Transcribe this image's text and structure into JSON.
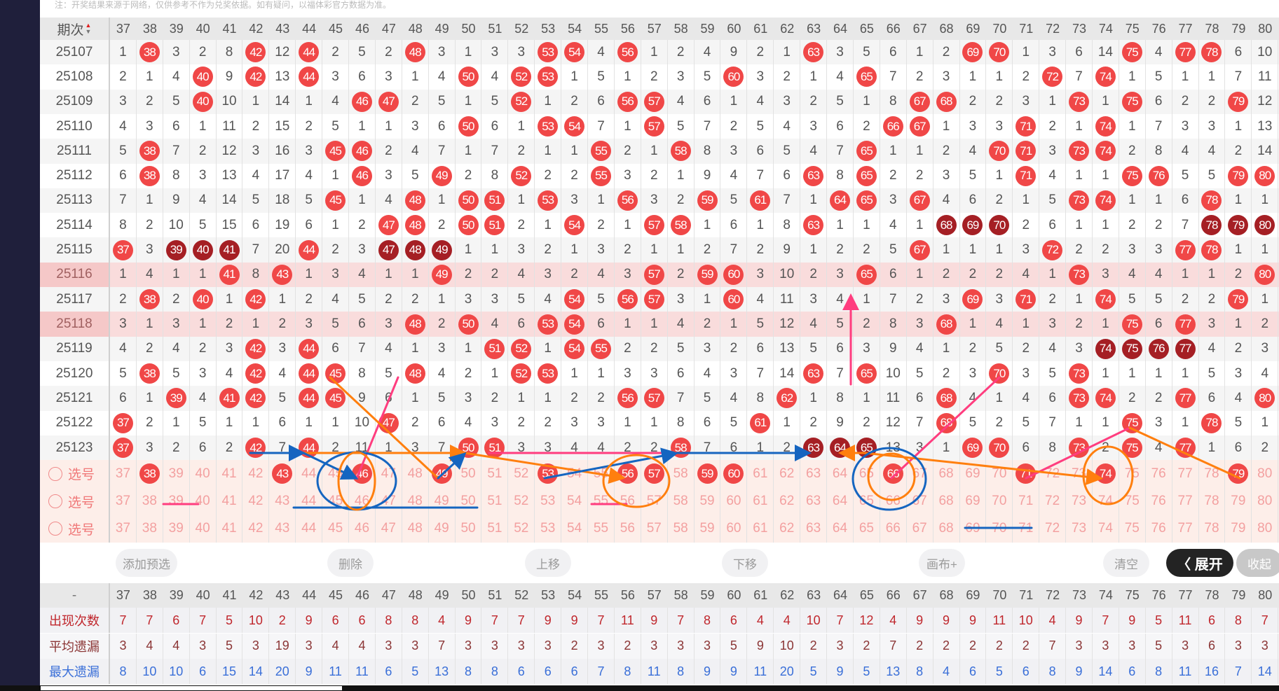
{
  "note": "注：开奖结果来源于网络，仅供参考不作为兑奖依据。如有疑问，以福体彩官方数据为准。",
  "header": {
    "period_label": "期次",
    "columns": [
      37,
      38,
      39,
      40,
      41,
      42,
      43,
      44,
      45,
      46,
      47,
      48,
      49,
      50,
      51,
      52,
      53,
      54,
      55,
      56,
      57,
      58,
      59,
      60,
      61,
      62,
      63,
      64,
      65,
      66,
      67,
      68,
      69,
      70,
      71,
      72,
      73,
      74,
      75,
      76,
      77,
      78,
      79,
      80
    ]
  },
  "rows": [
    {
      "period": "25107",
      "cells": [
        1,
        38,
        3,
        2,
        8,
        42,
        12,
        44,
        2,
        5,
        2,
        48,
        3,
        1,
        3,
        3,
        53,
        54,
        4,
        56,
        1,
        2,
        4,
        9,
        2,
        1,
        63,
        3,
        5,
        6,
        1,
        2,
        69,
        70,
        1,
        3,
        6,
        14,
        75,
        4,
        77,
        78,
        6,
        10
      ],
      "dark": []
    },
    {
      "period": "25108",
      "cells": [
        2,
        1,
        4,
        40,
        9,
        42,
        13,
        44,
        3,
        6,
        3,
        1,
        4,
        50,
        4,
        52,
        53,
        1,
        5,
        1,
        2,
        3,
        5,
        60,
        3,
        2,
        1,
        4,
        65,
        7,
        2,
        3,
        1,
        1,
        2,
        72,
        7,
        74,
        1,
        5,
        1,
        1,
        7,
        11
      ],
      "dark": []
    },
    {
      "period": "25109",
      "cells": [
        3,
        2,
        5,
        40,
        10,
        1,
        14,
        1,
        4,
        46,
        47,
        2,
        5,
        1,
        5,
        52,
        1,
        2,
        6,
        56,
        57,
        4,
        6,
        1,
        4,
        3,
        2,
        5,
        1,
        8,
        67,
        68,
        2,
        2,
        3,
        1,
        73,
        1,
        75,
        6,
        2,
        2,
        79,
        12
      ],
      "dark": []
    },
    {
      "period": "25110",
      "cells": [
        4,
        3,
        6,
        1,
        11,
        2,
        15,
        2,
        5,
        1,
        1,
        3,
        6,
        50,
        6,
        1,
        53,
        54,
        7,
        1,
        57,
        5,
        7,
        2,
        5,
        4,
        3,
        6,
        2,
        66,
        67,
        1,
        3,
        3,
        71,
        2,
        1,
        74,
        1,
        7,
        3,
        3,
        1,
        13
      ],
      "dark": []
    },
    {
      "period": "25111",
      "cells": [
        5,
        38,
        7,
        2,
        12,
        3,
        16,
        3,
        45,
        46,
        2,
        4,
        7,
        1,
        7,
        2,
        1,
        1,
        55,
        2,
        1,
        58,
        8,
        3,
        6,
        5,
        4,
        7,
        65,
        1,
        1,
        2,
        4,
        70,
        71,
        3,
        73,
        74,
        2,
        8,
        4,
        4,
        2,
        14
      ],
      "dark": []
    },
    {
      "period": "25112",
      "cells": [
        6,
        38,
        8,
        3,
        13,
        4,
        17,
        4,
        1,
        46,
        3,
        5,
        49,
        2,
        8,
        52,
        2,
        2,
        55,
        3,
        2,
        1,
        9,
        4,
        7,
        6,
        63,
        8,
        65,
        2,
        2,
        3,
        5,
        1,
        71,
        4,
        1,
        1,
        75,
        76,
        5,
        5,
        79,
        80
      ],
      "dark": []
    },
    {
      "period": "25113",
      "cells": [
        7,
        1,
        9,
        4,
        14,
        5,
        18,
        5,
        45,
        1,
        4,
        48,
        1,
        50,
        51,
        1,
        53,
        3,
        1,
        56,
        3,
        2,
        59,
        5,
        61,
        7,
        1,
        64,
        65,
        3,
        67,
        4,
        6,
        2,
        1,
        5,
        73,
        74,
        1,
        1,
        6,
        78,
        1,
        1
      ],
      "dark": []
    },
    {
      "period": "25114",
      "cells": [
        8,
        2,
        10,
        5,
        15,
        6,
        19,
        6,
        1,
        2,
        47,
        48,
        2,
        50,
        51,
        2,
        1,
        54,
        2,
        1,
        57,
        58,
        1,
        6,
        1,
        8,
        63,
        1,
        1,
        4,
        1,
        68,
        69,
        70,
        2,
        6,
        1,
        1,
        2,
        2,
        7,
        78,
        79,
        80
      ],
      "dark": [
        68,
        69,
        70,
        78,
        79,
        80
      ]
    },
    {
      "period": "25115",
      "cells": [
        37,
        3,
        39,
        40,
        41,
        7,
        20,
        44,
        2,
        3,
        47,
        48,
        49,
        1,
        1,
        3,
        2,
        1,
        3,
        2,
        1,
        1,
        2,
        7,
        2,
        9,
        1,
        2,
        2,
        5,
        67,
        1,
        1,
        1,
        3,
        72,
        2,
        2,
        3,
        3,
        77,
        78,
        1,
        1
      ],
      "dark": [
        39,
        40,
        41,
        47,
        48,
        49
      ]
    },
    {
      "period": "25116",
      "cells": [
        1,
        4,
        1,
        1,
        41,
        8,
        43,
        1,
        3,
        4,
        1,
        1,
        49,
        2,
        2,
        4,
        3,
        2,
        4,
        3,
        57,
        2,
        59,
        60,
        3,
        10,
        2,
        3,
        65,
        6,
        1,
        2,
        2,
        2,
        4,
        1,
        73,
        3,
        4,
        4,
        1,
        1,
        2,
        80
      ],
      "dark": [],
      "highlight": true
    },
    {
      "period": "25117",
      "cells": [
        2,
        38,
        2,
        40,
        1,
        42,
        1,
        2,
        4,
        5,
        2,
        2,
        1,
        3,
        3,
        5,
        4,
        54,
        5,
        56,
        57,
        3,
        1,
        60,
        4,
        11,
        3,
        4,
        1,
        7,
        2,
        3,
        69,
        3,
        71,
        2,
        1,
        74,
        5,
        5,
        2,
        2,
        79,
        1
      ],
      "dark": []
    },
    {
      "period": "25118",
      "cells": [
        3,
        1,
        3,
        1,
        2,
        1,
        2,
        3,
        5,
        6,
        3,
        48,
        2,
        50,
        4,
        6,
        53,
        54,
        6,
        1,
        1,
        4,
        2,
        1,
        5,
        12,
        4,
        5,
        2,
        8,
        3,
        68,
        1,
        4,
        1,
        3,
        2,
        1,
        75,
        6,
        77,
        3,
        1,
        2
      ],
      "dark": [],
      "highlight": true
    },
    {
      "period": "25119",
      "cells": [
        4,
        2,
        4,
        2,
        3,
        42,
        3,
        44,
        6,
        7,
        4,
        1,
        3,
        1,
        51,
        52,
        1,
        54,
        55,
        2,
        2,
        5,
        3,
        2,
        6,
        13,
        5,
        6,
        3,
        9,
        4,
        1,
        2,
        5,
        2,
        4,
        3,
        74,
        75,
        76,
        77,
        4,
        2,
        3
      ],
      "dark": [
        74,
        75,
        76,
        77
      ]
    },
    {
      "period": "25120",
      "cells": [
        5,
        38,
        5,
        3,
        4,
        42,
        4,
        44,
        45,
        8,
        5,
        48,
        4,
        2,
        1,
        52,
        53,
        1,
        1,
        3,
        3,
        6,
        4,
        3,
        7,
        14,
        63,
        7,
        65,
        10,
        5,
        2,
        3,
        70,
        3,
        5,
        73,
        1,
        1,
        1,
        1,
        5,
        3,
        4
      ],
      "dark": []
    },
    {
      "period": "25121",
      "cells": [
        6,
        1,
        39,
        4,
        41,
        42,
        5,
        44,
        45,
        9,
        6,
        1,
        5,
        3,
        2,
        1,
        1,
        2,
        2,
        56,
        57,
        7,
        5,
        4,
        8,
        62,
        1,
        8,
        1,
        11,
        6,
        68,
        4,
        1,
        4,
        6,
        73,
        74,
        2,
        2,
        77,
        6,
        4,
        80
      ],
      "dark": []
    },
    {
      "period": "25122",
      "cells": [
        37,
        2,
        1,
        5,
        1,
        1,
        6,
        1,
        1,
        10,
        47,
        2,
        6,
        4,
        3,
        2,
        2,
        3,
        3,
        1,
        1,
        8,
        6,
        5,
        61,
        1,
        2,
        9,
        2,
        12,
        7,
        68,
        5,
        2,
        5,
        7,
        1,
        1,
        75,
        3,
        1,
        78,
        5,
        1
      ],
      "dark": []
    },
    {
      "period": "25123",
      "cells": [
        37,
        3,
        2,
        6,
        2,
        42,
        7,
        44,
        2,
        11,
        1,
        3,
        7,
        50,
        51,
        3,
        3,
        4,
        4,
        2,
        2,
        58,
        7,
        6,
        1,
        2,
        63,
        64,
        65,
        13,
        3,
        1,
        69,
        70,
        6,
        8,
        73,
        2,
        75,
        4,
        77,
        1,
        6,
        2
      ],
      "dark": [
        63,
        64,
        65
      ]
    }
  ],
  "select_rows": [
    {
      "label": "选号",
      "selected": [
        38,
        43,
        46,
        49,
        53,
        56,
        57,
        59,
        60,
        66,
        71,
        74,
        79
      ]
    },
    {
      "label": "选号",
      "selected": []
    },
    {
      "label": "选号",
      "selected": []
    }
  ],
  "buttons": [
    "添加预选",
    "删除",
    "上移",
    "下移",
    "画布+",
    "清空",
    "收起"
  ],
  "stats": {
    "header_label": "-",
    "rows": [
      {
        "label": "出现次数",
        "color": "#c0272d",
        "values": [
          7,
          7,
          6,
          7,
          5,
          10,
          2,
          9,
          6,
          6,
          8,
          8,
          4,
          9,
          7,
          7,
          9,
          9,
          7,
          11,
          9,
          7,
          8,
          6,
          4,
          4,
          10,
          7,
          12,
          4,
          9,
          9,
          9,
          11,
          10,
          4,
          9,
          7,
          9,
          5,
          11,
          6,
          8,
          7
        ]
      },
      {
        "label": "平均遗漏",
        "color": "#8b3535",
        "values": [
          3,
          4,
          4,
          3,
          5,
          3,
          19,
          3,
          4,
          4,
          3,
          3,
          7,
          3,
          3,
          3,
          3,
          2,
          3,
          2,
          3,
          3,
          3,
          5,
          9,
          10,
          2,
          3,
          2,
          7,
          2,
          2,
          2,
          2,
          2,
          7,
          3,
          3,
          3,
          5,
          3,
          6,
          3,
          3
        ]
      },
      {
        "label": "最大遗漏",
        "color": "#3a6fd8",
        "values": [
          8,
          10,
          10,
          6,
          15,
          14,
          20,
          9,
          11,
          11,
          6,
          5,
          13,
          8,
          8,
          6,
          6,
          6,
          7,
          8,
          11,
          8,
          9,
          9,
          11,
          20,
          5,
          9,
          5,
          13,
          8,
          4,
          6,
          5,
          6,
          8,
          9,
          14,
          6,
          8,
          11,
          16,
          7,
          14
        ]
      }
    ]
  },
  "expand_label": "〈 展开",
  "colors": {
    "ball": "#f04747",
    "ball_dark": "#a51f24",
    "highlight_row": "#f9dcdc",
    "select_bg": "#fdeee9"
  }
}
